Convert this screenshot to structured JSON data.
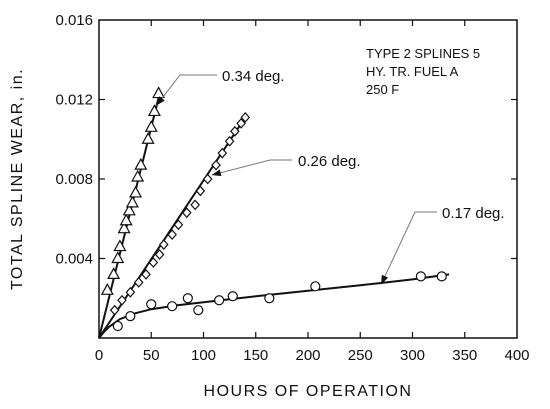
{
  "chart_data": {
    "type": "scatter",
    "xlabel": "HOURS  OF  OPERATION",
    "ylabel": "TOTAL  SPLINE  WEAR,  in.",
    "xlim": [
      0,
      400
    ],
    "ylim": [
      0,
      0.016
    ],
    "xticks": [
      0,
      50,
      100,
      150,
      200,
      250,
      300,
      350,
      400
    ],
    "yticks": [
      0.004,
      0.008,
      0.012,
      0.016
    ],
    "xtick_labels": [
      "0",
      "50",
      "100",
      "150",
      "200",
      "250",
      "300",
      "350",
      "400"
    ],
    "ytick_labels": [
      "0.004",
      "0.008",
      "0.012",
      "0.016"
    ],
    "grid": false,
    "note_lines": [
      "TYPE 2 SPLINES 5",
      "HY. TR. FUEL A",
      "250 F"
    ],
    "series": [
      {
        "name": "0.34 deg.",
        "marker": "triangle",
        "points": [
          [
            8,
            0.0024
          ],
          [
            14,
            0.0032
          ],
          [
            18,
            0.004
          ],
          [
            20,
            0.0046
          ],
          [
            24,
            0.0055
          ],
          [
            26,
            0.0059
          ],
          [
            29,
            0.0064
          ],
          [
            32,
            0.0068
          ],
          [
            35,
            0.0073
          ],
          [
            37,
            0.0081
          ],
          [
            40,
            0.0087
          ],
          [
            47,
            0.01
          ],
          [
            50,
            0.0106
          ],
          [
            53,
            0.0114
          ],
          [
            57,
            0.0123
          ]
        ],
        "fit": [
          [
            0,
            0.0
          ],
          [
            58,
            0.0123
          ]
        ],
        "label_at": [
          55,
          0.0117
        ]
      },
      {
        "name": "0.26 deg.",
        "marker": "diamond",
        "points": [
          [
            15,
            0.0014
          ],
          [
            22,
            0.0019
          ],
          [
            30,
            0.0023
          ],
          [
            38,
            0.0028
          ],
          [
            45,
            0.0032
          ],
          [
            52,
            0.0038
          ],
          [
            58,
            0.0042
          ],
          [
            62,
            0.0047
          ],
          [
            70,
            0.0052
          ],
          [
            76,
            0.0057
          ],
          [
            84,
            0.0063
          ],
          [
            92,
            0.0067
          ],
          [
            97,
            0.0074
          ],
          [
            104,
            0.008
          ],
          [
            112,
            0.0087
          ],
          [
            118,
            0.0093
          ],
          [
            125,
            0.0099
          ],
          [
            130,
            0.0104
          ],
          [
            136,
            0.0108
          ],
          [
            140,
            0.0111
          ]
        ],
        "fit": [
          [
            0,
            0.0
          ],
          [
            140,
            0.0111
          ]
        ],
        "label_at": [
          108,
          0.0082
        ]
      },
      {
        "name": "0.17 deg.",
        "marker": "circle",
        "points": [
          [
            18,
            0.0006
          ],
          [
            30,
            0.0011
          ],
          [
            50,
            0.0017
          ],
          [
            70,
            0.0016
          ],
          [
            85,
            0.002
          ],
          [
            95,
            0.0014
          ],
          [
            115,
            0.0019
          ],
          [
            128,
            0.0021
          ],
          [
            163,
            0.002
          ],
          [
            207,
            0.0026
          ],
          [
            308,
            0.0031
          ],
          [
            328,
            0.0031
          ]
        ],
        "fit": [
          [
            0,
            0.0
          ],
          [
            5,
            0.00032
          ],
          [
            10,
            0.00058
          ],
          [
            20,
            0.00095
          ],
          [
            35,
            0.00125
          ],
          [
            50,
            0.00145
          ],
          [
            75,
            0.00165
          ],
          [
            100,
            0.0018
          ],
          [
            150,
            0.0021
          ],
          [
            200,
            0.00238
          ],
          [
            250,
            0.00265
          ],
          [
            300,
            0.00295
          ],
          [
            335,
            0.0032
          ]
        ],
        "label_at": [
          270,
          0.0027
        ]
      }
    ]
  }
}
